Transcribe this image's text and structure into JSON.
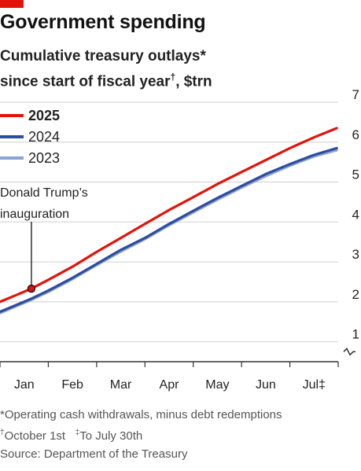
{
  "header": {
    "title": "Government spending",
    "subtitle_line1": "Cumulative treasury outlays*",
    "subtitle_line2_pre": "since start of fiscal year",
    "subtitle_line2_mark": "†",
    "subtitle_line2_post": ", $trn"
  },
  "annotation": {
    "text": "Donald Trump’s inauguration"
  },
  "footnotes": {
    "note1": "*Operating cash withdrawals, minus debt redemptions",
    "note2_mark": "†",
    "note2_text": "October 1st",
    "note3_mark": "‡",
    "note3_text": "To July 30th",
    "source": "Source: Department of the Treasury"
  },
  "colors": {
    "accent": "#e3120b",
    "series_2025": "#e3120b",
    "series_2024": "#2e4c9d",
    "series_2023": "#8aa4d6",
    "grid": "#cfcfcf",
    "axis": "#555555"
  },
  "chart_data": {
    "type": "line",
    "title": "Government spending",
    "subtitle": "Cumulative treasury outlays* since start of fiscal year†, $trn",
    "xlabel": "",
    "ylabel": "$trn",
    "x_ticks": [
      "Jan",
      "Feb",
      "Mar",
      "Apr",
      "May",
      "Jun",
      "Jul‡"
    ],
    "x_tick_positions": [
      3.5,
      4.5,
      5.5,
      6.5,
      7.5,
      8.5,
      9.5
    ],
    "xlim": [
      3.0,
      10.0
    ],
    "ylim": [
      0.5,
      7
    ],
    "y_ticks": [
      1,
      2,
      3,
      4,
      5,
      6,
      7
    ],
    "axis_break": true,
    "grid": true,
    "legend_position": "top-left",
    "series": [
      {
        "name": "2025",
        "color": "#e3120b",
        "x": [
          3.0,
          3.3,
          3.65,
          4.0,
          4.5,
          5.0,
          5.5,
          6.0,
          6.5,
          7.0,
          7.5,
          8.0,
          8.5,
          9.0,
          9.5,
          9.97
        ],
        "y": [
          2.0,
          2.15,
          2.33,
          2.55,
          2.88,
          3.25,
          3.6,
          3.95,
          4.3,
          4.62,
          4.95,
          5.25,
          5.55,
          5.85,
          6.12,
          6.35
        ]
      },
      {
        "name": "2024",
        "color": "#2e4c9d",
        "x": [
          3.0,
          3.3,
          3.65,
          4.0,
          4.5,
          5.0,
          5.5,
          6.0,
          6.5,
          7.0,
          7.5,
          8.0,
          8.5,
          9.0,
          9.5,
          9.97
        ],
        "y": [
          1.75,
          1.9,
          2.08,
          2.28,
          2.6,
          2.95,
          3.3,
          3.6,
          3.95,
          4.28,
          4.6,
          4.9,
          5.2,
          5.45,
          5.68,
          5.85
        ]
      },
      {
        "name": "2023",
        "color": "#8aa4d6",
        "x": [
          3.0,
          3.3,
          3.65,
          4.0,
          4.5,
          5.0,
          5.5,
          6.0,
          6.5,
          7.0,
          7.5,
          8.0,
          8.5,
          9.0,
          9.5,
          9.97
        ],
        "y": [
          1.72,
          1.87,
          2.05,
          2.25,
          2.57,
          2.92,
          3.26,
          3.57,
          3.92,
          4.24,
          4.56,
          4.86,
          5.15,
          5.41,
          5.64,
          5.8
        ]
      }
    ],
    "annotations": [
      {
        "text": "Donald Trump’s inauguration",
        "x": 3.65,
        "y": 2.33,
        "series": "2025"
      }
    ]
  }
}
